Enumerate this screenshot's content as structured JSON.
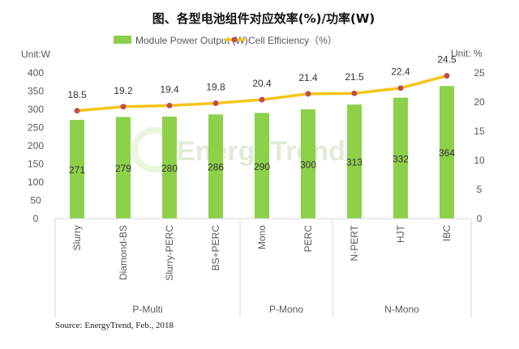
{
  "chart_data": {
    "type": "bar+line",
    "title": "图、各型电池组件对应效率(%)/功率(W)",
    "left_axis_unit": "Unit:W",
    "right_axis_unit": "Unit: %",
    "left_ylim": [
      0,
      400
    ],
    "left_ticks": [
      "0",
      "50",
      "100",
      "150",
      "200",
      "250",
      "300",
      "350",
      "400"
    ],
    "right_ylim": [
      0,
      25
    ],
    "right_ticks": [
      "0",
      "5",
      "10",
      "15",
      "20",
      "25"
    ],
    "categories": [
      "Slurry",
      "Diamond-BS",
      "Slurry-PERC",
      "BS+PERC",
      "Mono",
      "PERC",
      "N-PERT",
      "HJT",
      "IBC"
    ],
    "groups": [
      {
        "label": "P-Multi",
        "count": 4
      },
      {
        "label": "P-Mono",
        "count": 2
      },
      {
        "label": "N-Mono",
        "count": 3
      }
    ],
    "series": [
      {
        "name": "Module Power Output (W)",
        "type": "bar",
        "axis": "left",
        "color": "#8DD04A",
        "values": [
          271,
          279,
          280,
          286,
          290,
          300,
          313,
          332,
          364
        ]
      },
      {
        "name": "Cell Efficiency（%）",
        "type": "line",
        "axis": "right",
        "color": "#F5C518",
        "marker_color": "#C0504D",
        "values": [
          18.5,
          19.2,
          19.4,
          19.8,
          20.4,
          21.4,
          21.5,
          22.4,
          24.5
        ]
      }
    ],
    "legend_position": "top",
    "grid": false,
    "watermark": "EnergyTrend",
    "source": "Source: EnergyTrend, Feb., 2018"
  }
}
